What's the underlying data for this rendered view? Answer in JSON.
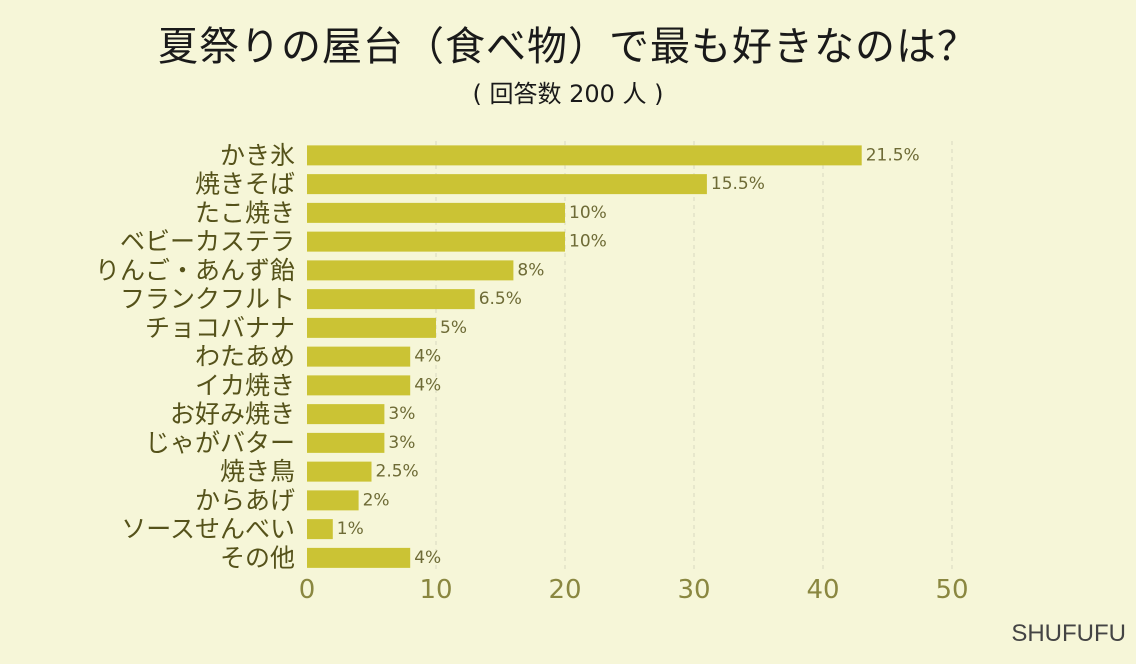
{
  "title": "夏祭りの屋台（食べ物）で最も好きなのは？",
  "subtitle": "( 回答数 200 人 )",
  "brand": "SHUFUFU",
  "colors": {
    "bar": "#cbc334",
    "background": "#f6f6d8",
    "grid": "#d8d8c0"
  },
  "chart_data": {
    "type": "bar",
    "orientation": "horizontal",
    "categories": [
      "かき氷",
      "焼きそば",
      "たこ焼き",
      "ベビーカステラ",
      "りんご・あんず飴",
      "フランクフルト",
      "チョコバナナ",
      "わたあめ",
      "イカ焼き",
      "お好み焼き",
      "じゃがバター",
      "焼き鳥",
      "からあげ",
      "ソースせんべい",
      "その他"
    ],
    "values": [
      43,
      31,
      20,
      20,
      16,
      13,
      10,
      8,
      8,
      6,
      6,
      5,
      4,
      2,
      8
    ],
    "value_labels": [
      "21.5%",
      "15.5%",
      "10%",
      "10%",
      "8%",
      "6.5%",
      "5%",
      "4%",
      "4%",
      "3%",
      "3%",
      "2.5%",
      "2%",
      "1%",
      "4%"
    ],
    "xlim": [
      0,
      50
    ],
    "xticks": [
      "0",
      "10",
      "20",
      "30",
      "40",
      "50"
    ],
    "grid": true,
    "grid_style": "dashed-vertical"
  }
}
